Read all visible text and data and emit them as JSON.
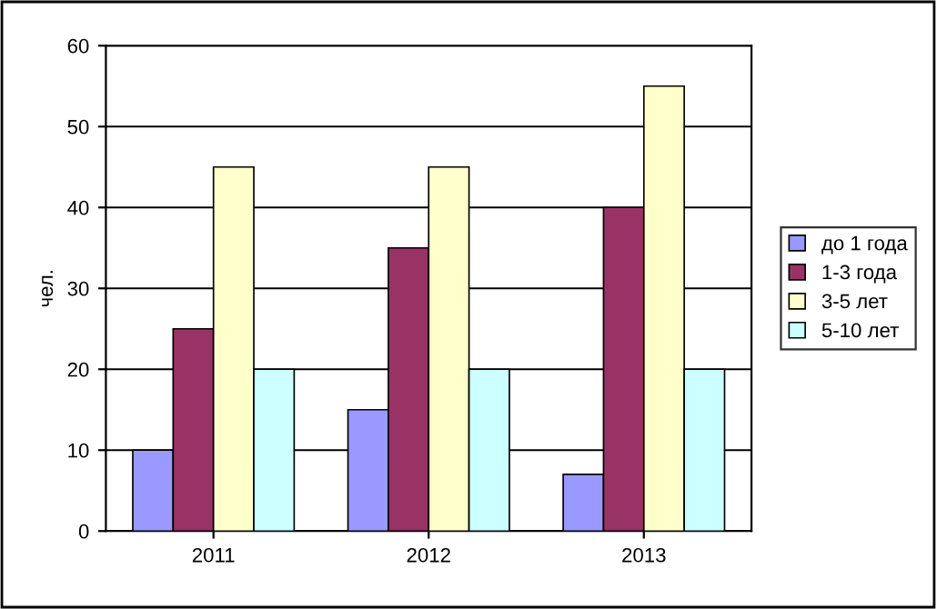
{
  "chart_data": {
    "type": "bar",
    "ylabel": "чел.",
    "categories": [
      "2011",
      "2012",
      "2013"
    ],
    "series": [
      {
        "name": "до 1 года",
        "color": "#9999ff",
        "values": [
          10,
          15,
          7
        ]
      },
      {
        "name": "1-3 года",
        "color": "#993366",
        "values": [
          25,
          35,
          40
        ]
      },
      {
        "name": "3-5 лет",
        "color": "#ffffcc",
        "values": [
          45,
          45,
          55
        ]
      },
      {
        "name": "5-10 лет",
        "color": "#ccffff",
        "values": [
          20,
          20,
          20
        ]
      }
    ],
    "ylim": [
      0,
      60
    ],
    "yticks": [
      0,
      10,
      20,
      30,
      40,
      50,
      60
    ],
    "grid": "y",
    "legend": "right"
  }
}
